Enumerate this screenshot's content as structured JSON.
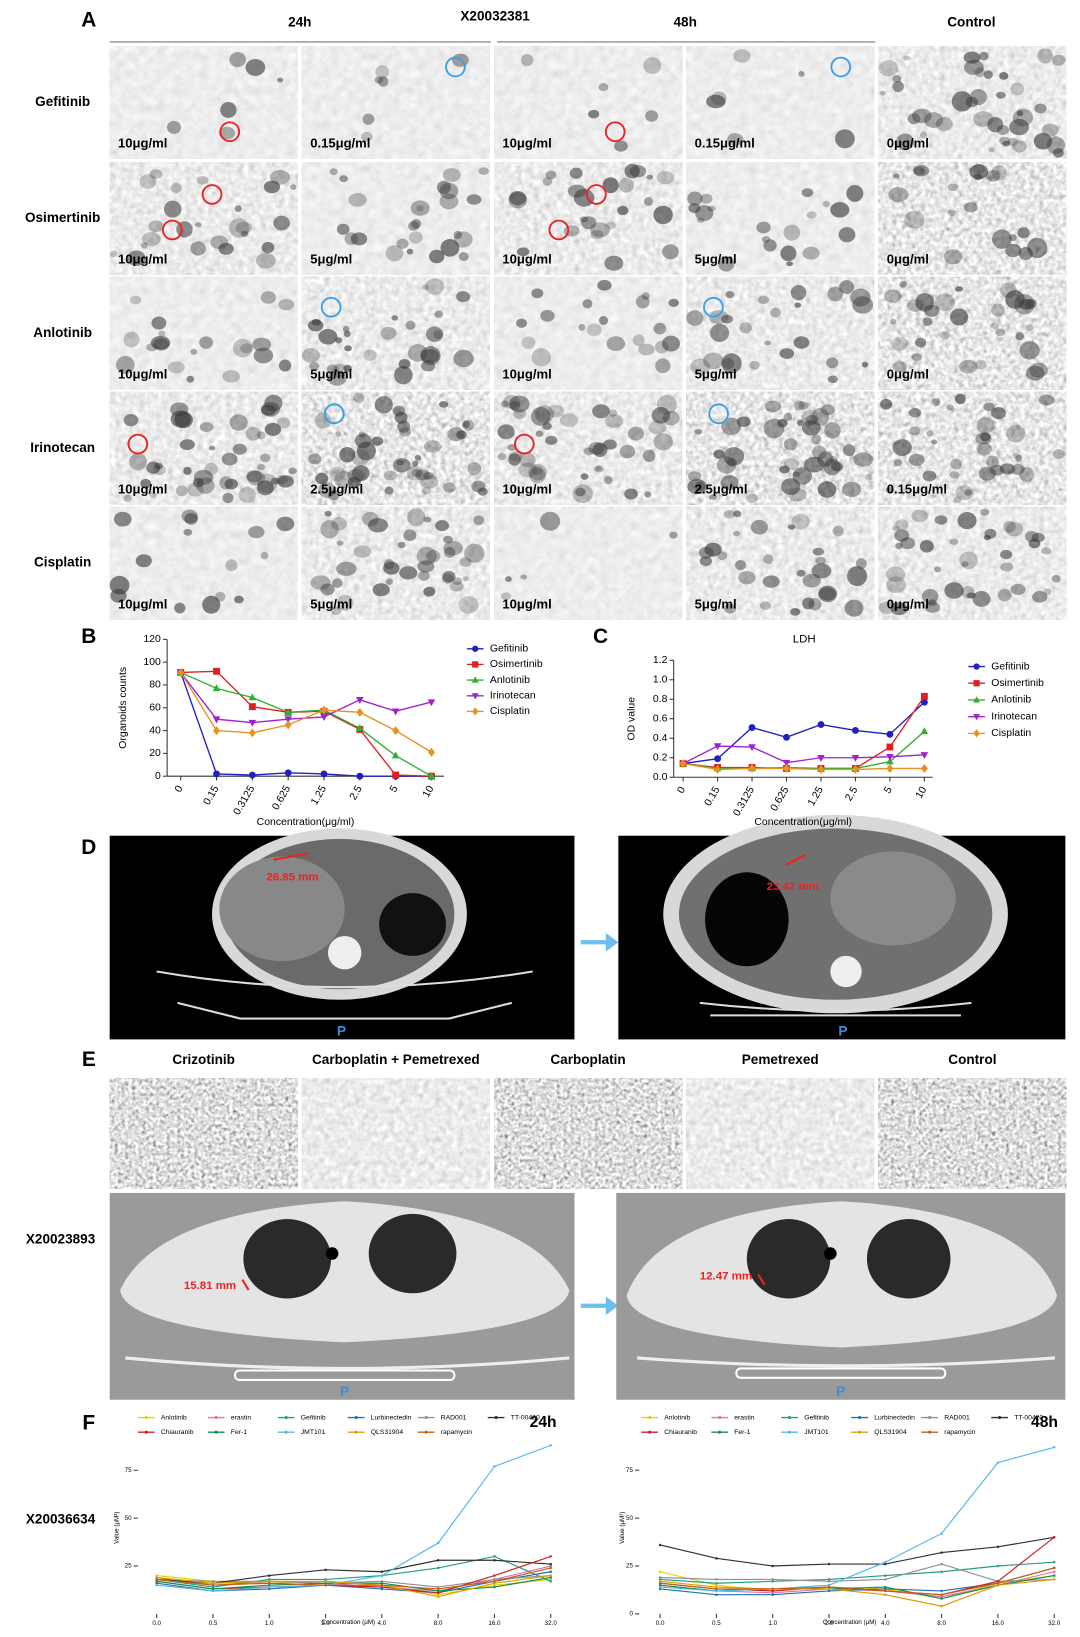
{
  "panel_labels": [
    "A",
    "B",
    "C",
    "D",
    "E",
    "F"
  ],
  "panel_a": {
    "sample": "X20032381",
    "columns": [
      "24h",
      "48h",
      "Control"
    ],
    "rows": [
      {
        "drug": "Gefitinib",
        "concentrations": [
          "10μg/ml",
          "0.15μg/ml",
          "10μg/ml",
          "0.15μg/ml",
          "0μg/ml"
        ]
      },
      {
        "drug": "Osimertinib",
        "concentrations": [
          "10μg/ml",
          "5μg/ml",
          "10μg/ml",
          "5μg/ml",
          "0μg/ml"
        ]
      },
      {
        "drug": "Anlotinib",
        "concentrations": [
          "10μg/ml",
          "5μg/ml",
          "10μg/ml",
          "5μg/ml",
          "0μg/ml"
        ]
      },
      {
        "drug": "Irinotecan",
        "concentrations": [
          "10μg/ml",
          "2.5μg/ml",
          "10μg/ml",
          "2.5μg/ml",
          "0.15μg/ml"
        ]
      },
      {
        "drug": "Cisplatin",
        "concentrations": [
          "10μg/ml",
          "5μg/ml",
          "10μg/ml",
          "5μg/ml",
          "0μg/ml"
        ]
      }
    ]
  },
  "chart_data": [
    {
      "type": "line",
      "xlabel": "Concentration(μg/ml)",
      "ylabel": "Organoids counts",
      "categories": [
        "0",
        "0.15",
        "0.3125",
        "0.625",
        "1.25",
        "2.5",
        "5",
        "10"
      ],
      "ylim": [
        0,
        120
      ],
      "yticks": [
        0,
        20,
        40,
        60,
        80,
        100,
        120
      ],
      "legend": "right",
      "series": [
        {
          "name": "Gefitinib",
          "color": "#2020c0",
          "marker": "circle",
          "values": [
            91,
            2,
            1,
            3,
            2,
            0,
            0,
            0
          ]
        },
        {
          "name": "Osimertinib",
          "color": "#e02020",
          "marker": "square",
          "values": [
            91,
            92,
            61,
            56,
            57,
            41,
            1,
            0
          ]
        },
        {
          "name": "Anlotinib",
          "color": "#30b030",
          "marker": "triangle-up",
          "values": [
            91,
            77,
            69,
            56,
            58,
            42,
            18,
            0
          ]
        },
        {
          "name": "Irinotecan",
          "color": "#a020d0",
          "marker": "triangle-down",
          "values": [
            91,
            50,
            47,
            50,
            52,
            67,
            57,
            65
          ]
        },
        {
          "name": "Cisplatin",
          "color": "#e89020",
          "marker": "diamond",
          "values": [
            91,
            40,
            38,
            45,
            58,
            56,
            40,
            21
          ]
        }
      ]
    },
    {
      "type": "line",
      "title": "LDH",
      "xlabel": "Concentration(μg/ml)",
      "ylabel": "OD value",
      "categories": [
        "0",
        "0.15",
        "0.3125",
        "0.625",
        "1.25",
        "2.5",
        "5",
        "10"
      ],
      "ylim": [
        0,
        1.2
      ],
      "yticks": [
        {
          "value": 0,
          "label": "0.0"
        },
        0.2,
        0.4,
        0.6,
        0.8,
        {
          "value": 1,
          "label": "1.0"
        },
        1.2
      ],
      "legend": "right",
      "series": [
        {
          "name": "Gefitinib",
          "color": "#2020c0",
          "marker": "circle",
          "values": [
            0.14,
            0.19,
            0.51,
            0.41,
            0.54,
            0.48,
            0.44,
            0.77
          ]
        },
        {
          "name": "Osimertinib",
          "color": "#e02020",
          "marker": "square",
          "values": [
            0.14,
            0.1,
            0.1,
            0.09,
            0.09,
            0.09,
            0.31,
            0.83
          ]
        },
        {
          "name": "Anlotinib",
          "color": "#30b030",
          "marker": "triangle-up",
          "values": [
            0.14,
            0.09,
            0.09,
            0.1,
            0.09,
            0.09,
            0.16,
            0.47
          ]
        },
        {
          "name": "Irinotecan",
          "color": "#a020d0",
          "marker": "triangle-down",
          "values": [
            0.14,
            0.32,
            0.31,
            0.15,
            0.2,
            0.2,
            0.21,
            0.23
          ]
        },
        {
          "name": "Cisplatin",
          "color": "#e89020",
          "marker": "diamond",
          "values": [
            0.14,
            0.08,
            0.09,
            0.09,
            0.08,
            0.08,
            0.09,
            0.09
          ]
        }
      ]
    },
    {
      "type": "line",
      "title": "24h",
      "xlabel": "Concentration (μM)",
      "ylabel": "Value (μM²)",
      "categories": [
        "0.0",
        "0.5",
        "1.0",
        "2.0",
        "4.0",
        "8.0",
        "16.0",
        "32.0"
      ],
      "ylim": [
        0,
        90
      ],
      "yticks": [
        25,
        50,
        75
      ],
      "legend": "top",
      "series": [
        {
          "name": "Anlotinib",
          "color": "#e8d000",
          "values": [
            20,
            17,
            16,
            17,
            15,
            10,
            15,
            18
          ]
        },
        {
          "name": "erastin",
          "color": "#e070b0",
          "values": [
            19,
            15,
            17,
            16,
            14,
            12,
            18,
            25
          ]
        },
        {
          "name": "Gefitinib",
          "color": "#20a080",
          "values": [
            18,
            14,
            18,
            18,
            20,
            24,
            30,
            17
          ]
        },
        {
          "name": "Lurbinectedin",
          "color": "#2070b0",
          "values": [
            16,
            12,
            13,
            15,
            13,
            11,
            17,
            22
          ]
        },
        {
          "name": "RAD001",
          "color": "#909090",
          "values": [
            18,
            17,
            17,
            16,
            17,
            14,
            18,
            20
          ]
        },
        {
          "name": "TT-00420",
          "color": "#303030",
          "values": [
            18,
            16,
            20,
            23,
            22,
            28,
            28,
            26
          ]
        },
        {
          "name": "Chiauranib",
          "color": "#d02020",
          "values": [
            17,
            13,
            14,
            15,
            14,
            11,
            20,
            30
          ]
        },
        {
          "name": "Fer-1",
          "color": "#109050",
          "values": [
            17,
            13,
            15,
            16,
            16,
            12,
            14,
            19
          ]
        },
        {
          "name": "JMT101",
          "color": "#50b8e8",
          "values": [
            15,
            12,
            14,
            15,
            20,
            37,
            77,
            88
          ]
        },
        {
          "name": "QLS31904",
          "color": "#d8a000",
          "values": [
            19,
            16,
            17,
            17,
            15,
            9,
            16,
            20
          ]
        },
        {
          "name": "rapamycin",
          "color": "#c06010",
          "values": [
            18,
            15,
            16,
            15,
            15,
            13,
            17,
            24
          ]
        }
      ]
    },
    {
      "type": "line",
      "title": "48h",
      "xlabel": "Concentration (μM)",
      "ylabel": "Value (μM²)",
      "categories": [
        "0.0",
        "0.5",
        "1.0",
        "2.0",
        "4.0",
        "8.0",
        "16.0",
        "32.0"
      ],
      "ylim": [
        0,
        90
      ],
      "yticks": [
        0,
        25,
        50,
        75
      ],
      "legend": "top",
      "series": [
        {
          "name": "Anlotinib",
          "color": "#e8d000",
          "values": [
            22,
            15,
            12,
            14,
            13,
            8,
            16,
            20
          ]
        },
        {
          "name": "erastin",
          "color": "#e070b0",
          "values": [
            15,
            12,
            11,
            13,
            12,
            9,
            15,
            22
          ]
        },
        {
          "name": "Gefitinib",
          "color": "#20a080",
          "values": [
            18,
            16,
            17,
            18,
            20,
            22,
            25,
            27
          ]
        },
        {
          "name": "Lurbinectedin",
          "color": "#2070b0",
          "values": [
            13,
            10,
            10,
            12,
            13,
            12,
            16,
            24
          ]
        },
        {
          "name": "RAD001",
          "color": "#909090",
          "values": [
            19,
            18,
            18,
            17,
            18,
            26,
            17,
            18
          ]
        },
        {
          "name": "TT-00420",
          "color": "#303030",
          "values": [
            36,
            29,
            25,
            26,
            26,
            32,
            35,
            40
          ]
        },
        {
          "name": "Chiauranib",
          "color": "#d02020",
          "values": [
            16,
            13,
            12,
            14,
            12,
            10,
            17,
            40
          ]
        },
        {
          "name": "Fer-1",
          "color": "#109050",
          "values": [
            15,
            12,
            13,
            13,
            14,
            8,
            15,
            20
          ]
        },
        {
          "name": "JMT101",
          "color": "#50b8e8",
          "values": [
            14,
            12,
            13,
            15,
            27,
            42,
            79,
            87
          ]
        },
        {
          "name": "QLS31904",
          "color": "#d8a000",
          "values": [
            17,
            14,
            13,
            13,
            10,
            4,
            15,
            18
          ]
        },
        {
          "name": "rapamycin",
          "color": "#c06010",
          "values": [
            16,
            13,
            13,
            14,
            12,
            10,
            16,
            24
          ]
        }
      ]
    }
  ],
  "panel_d": {
    "measurements": [
      "26.85 mm",
      "23.42 mm"
    ],
    "orientation": "P"
  },
  "panel_e": {
    "columns": [
      "Crizotinib",
      "Carboplatin + Pemetrexed",
      "Carboplatin",
      "Pemetrexed",
      "Control"
    ],
    "sample": "X20023893",
    "measurements": [
      "15.81 mm",
      "12.47 mm"
    ],
    "orientation": "P"
  },
  "panel_f": {
    "sample": "X20036634"
  }
}
